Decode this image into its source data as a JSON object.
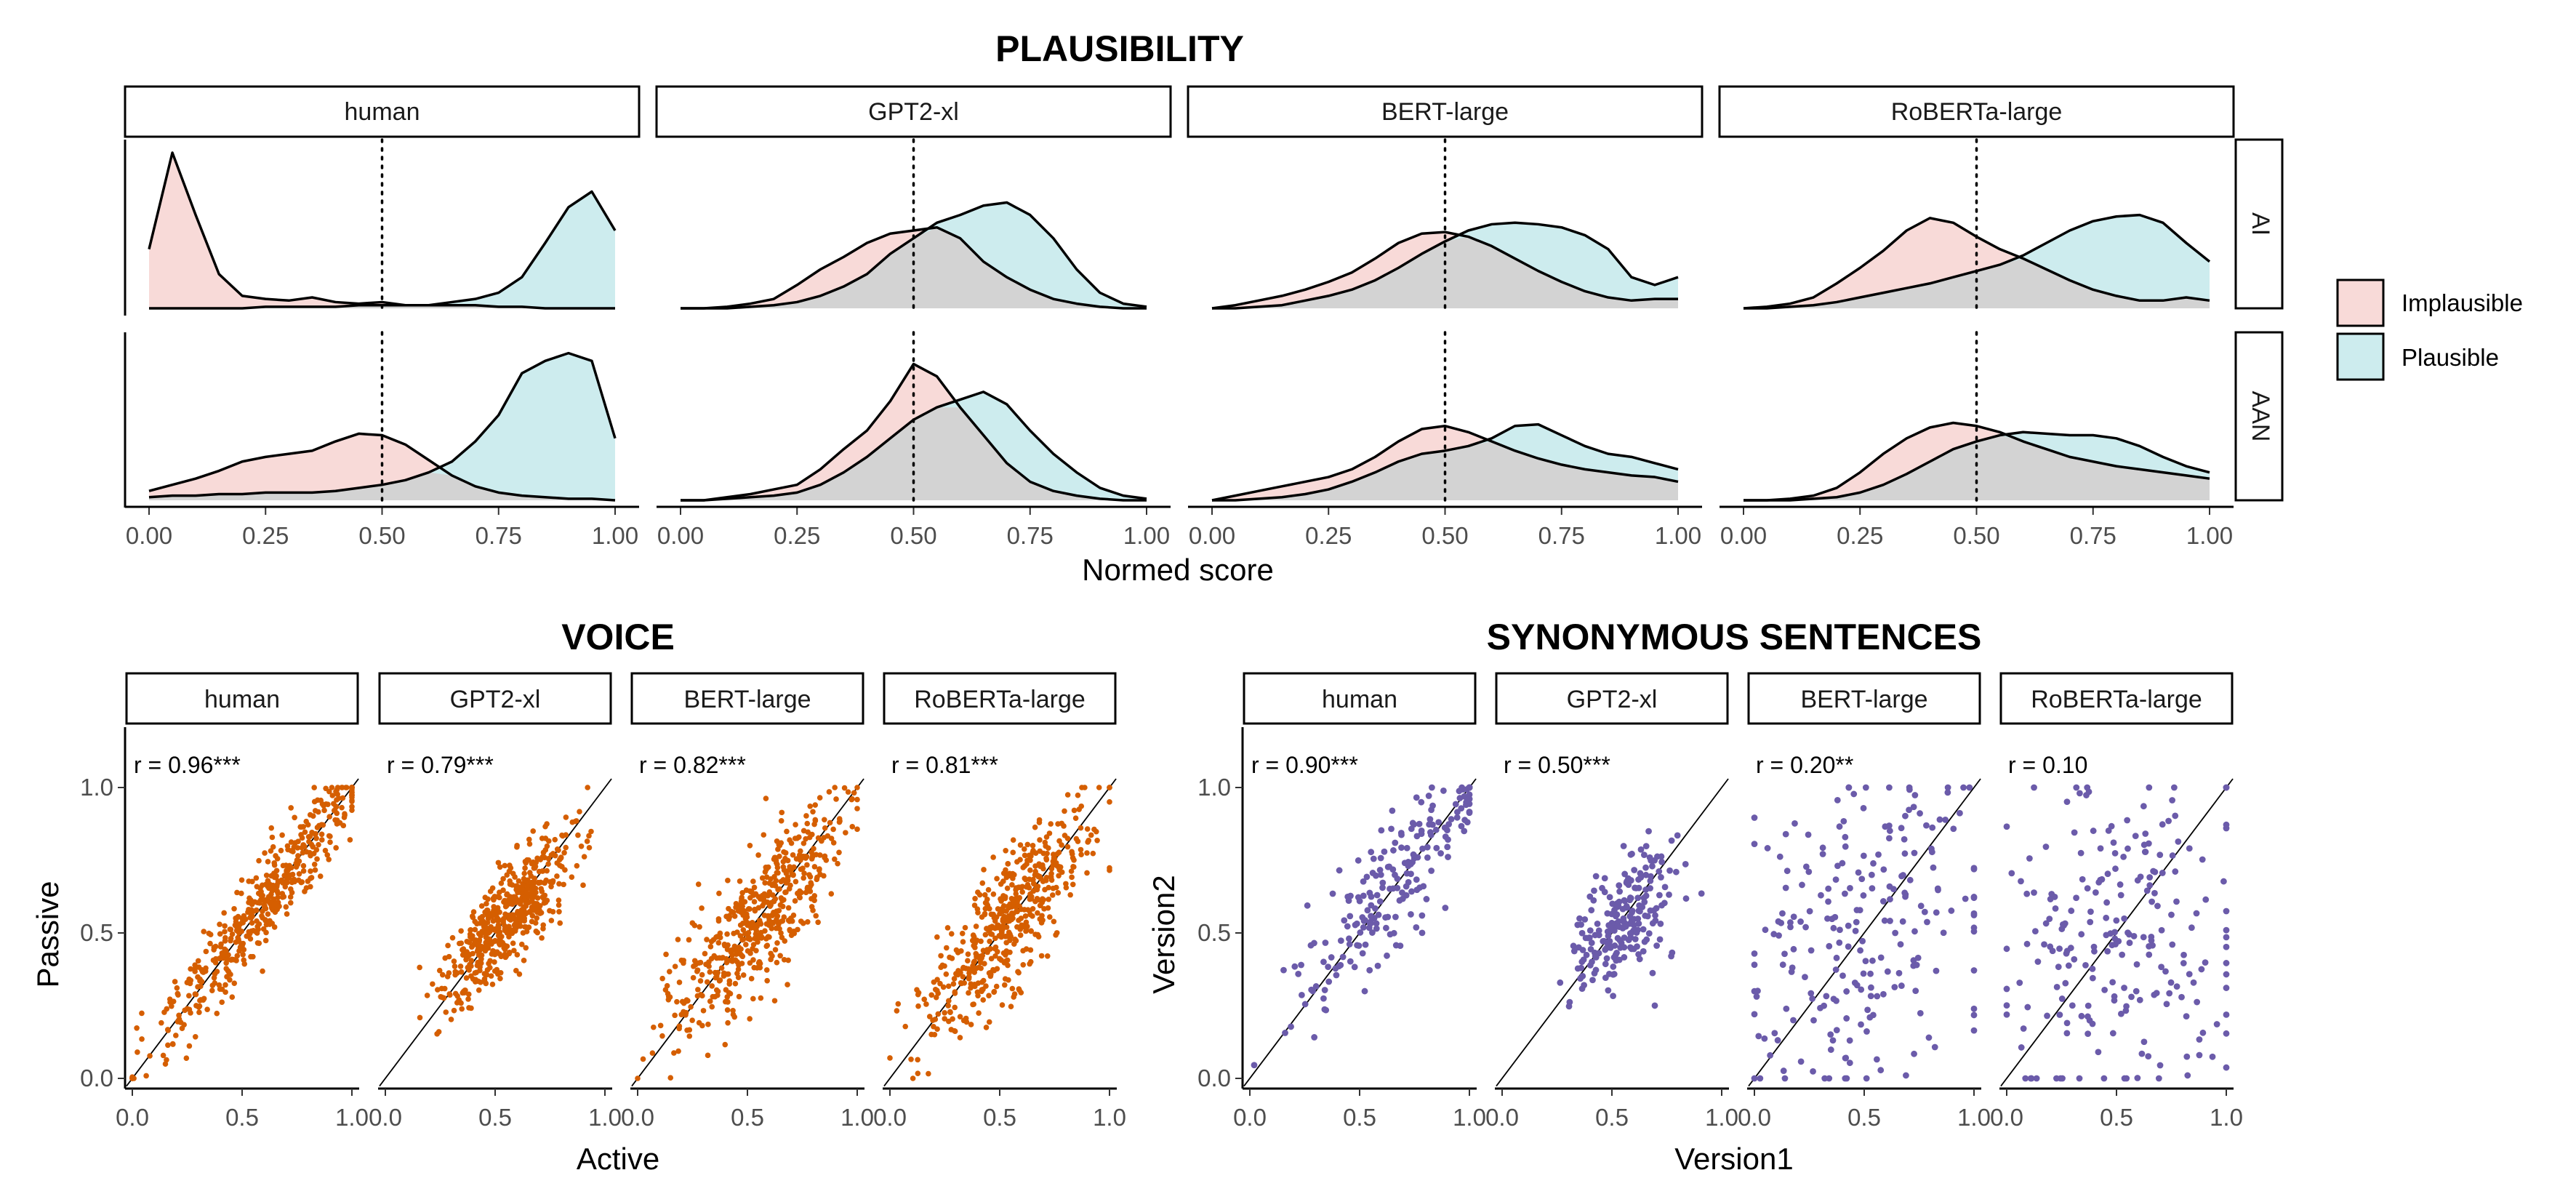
{
  "figure": {
    "legend": {
      "items": [
        {
          "label": "Implausible",
          "color": "#F8DAD8"
        },
        {
          "label": "Plausible",
          "color": "#CDECEE"
        }
      ]
    },
    "colors": {
      "voice_points": "#D55E00",
      "synonymous_points": "#6B5BAA",
      "overlap": "#D3D3D3"
    }
  },
  "chart_data": [
    {
      "type": "area",
      "title": "PLAUSIBILITY",
      "xlabel": "Normed score",
      "ylabel": "",
      "xlim": [
        0,
        1
      ],
      "xticks": [
        "0.00",
        "0.25",
        "0.50",
        "0.75",
        "1.00"
      ],
      "reference_line_x": 0.5,
      "facet_columns": [
        "human",
        "GPT2-xl",
        "BERT-large",
        "RoBERTa-large"
      ],
      "facet_rows": [
        "AI",
        "AAN"
      ],
      "x": [
        0,
        0.05,
        0.1,
        0.15,
        0.2,
        0.25,
        0.3,
        0.35,
        0.4,
        0.45,
        0.5,
        0.55,
        0.6,
        0.65,
        0.7,
        0.75,
        0.8,
        0.85,
        0.9,
        0.95,
        1.0
      ],
      "panels": [
        {
          "column": "human",
          "row": "AI",
          "series": [
            {
              "name": "Implausible",
              "values": [
                0.38,
                1.0,
                0.6,
                0.22,
                0.08,
                0.06,
                0.05,
                0.07,
                0.04,
                0.03,
                0.04,
                0.02,
                0.02,
                0.02,
                0.02,
                0.01,
                0.01,
                0.0,
                0.0,
                0.0,
                0.0
              ]
            },
            {
              "name": "Plausible",
              "values": [
                0.0,
                0.0,
                0.0,
                0.0,
                0.0,
                0.01,
                0.01,
                0.01,
                0.01,
                0.02,
                0.02,
                0.02,
                0.02,
                0.04,
                0.06,
                0.1,
                0.2,
                0.42,
                0.65,
                0.75,
                0.5
              ]
            }
          ]
        },
        {
          "column": "GPT2-xl",
          "row": "AI",
          "series": [
            {
              "name": "Implausible",
              "values": [
                0.0,
                0.0,
                0.01,
                0.03,
                0.06,
                0.15,
                0.25,
                0.33,
                0.42,
                0.48,
                0.5,
                0.52,
                0.45,
                0.3,
                0.2,
                0.12,
                0.06,
                0.03,
                0.01,
                0.0,
                0.0
              ]
            },
            {
              "name": "Plausible",
              "values": [
                0.0,
                0.0,
                0.0,
                0.01,
                0.02,
                0.04,
                0.08,
                0.14,
                0.22,
                0.35,
                0.45,
                0.55,
                0.6,
                0.66,
                0.68,
                0.6,
                0.45,
                0.25,
                0.1,
                0.03,
                0.01
              ]
            }
          ]
        },
        {
          "column": "BERT-large",
          "row": "AI",
          "series": [
            {
              "name": "Implausible",
              "values": [
                0.0,
                0.02,
                0.05,
                0.08,
                0.12,
                0.17,
                0.23,
                0.32,
                0.42,
                0.48,
                0.49,
                0.46,
                0.4,
                0.32,
                0.24,
                0.17,
                0.11,
                0.07,
                0.05,
                0.06,
                0.06
              ]
            },
            {
              "name": "Plausible",
              "values": [
                0.0,
                0.0,
                0.01,
                0.02,
                0.05,
                0.08,
                0.12,
                0.18,
                0.26,
                0.35,
                0.43,
                0.5,
                0.54,
                0.55,
                0.54,
                0.52,
                0.47,
                0.38,
                0.2,
                0.15,
                0.2
              ]
            }
          ]
        },
        {
          "column": "RoBERTa-large",
          "row": "AI",
          "series": [
            {
              "name": "Implausible",
              "values": [
                0.0,
                0.01,
                0.03,
                0.07,
                0.16,
                0.26,
                0.37,
                0.5,
                0.58,
                0.55,
                0.46,
                0.38,
                0.32,
                0.25,
                0.18,
                0.12,
                0.08,
                0.05,
                0.05,
                0.07,
                0.05
              ]
            },
            {
              "name": "Plausible",
              "values": [
                0.0,
                0.0,
                0.01,
                0.02,
                0.04,
                0.07,
                0.1,
                0.13,
                0.16,
                0.2,
                0.24,
                0.28,
                0.34,
                0.42,
                0.5,
                0.56,
                0.59,
                0.6,
                0.55,
                0.42,
                0.3
              ]
            }
          ]
        },
        {
          "column": "human",
          "row": "AAN",
          "series": [
            {
              "name": "Implausible",
              "values": [
                0.06,
                0.1,
                0.14,
                0.19,
                0.25,
                0.28,
                0.3,
                0.32,
                0.38,
                0.43,
                0.42,
                0.36,
                0.26,
                0.16,
                0.09,
                0.05,
                0.03,
                0.02,
                0.01,
                0.01,
                0.0
              ]
            },
            {
              "name": "Plausible",
              "values": [
                0.02,
                0.03,
                0.03,
                0.04,
                0.04,
                0.05,
                0.05,
                0.05,
                0.06,
                0.08,
                0.1,
                0.13,
                0.18,
                0.25,
                0.38,
                0.55,
                0.82,
                0.9,
                0.95,
                0.9,
                0.4
              ]
            }
          ]
        },
        {
          "column": "GPT2-xl",
          "row": "AAN",
          "series": [
            {
              "name": "Implausible",
              "values": [
                0.0,
                0.0,
                0.02,
                0.04,
                0.07,
                0.1,
                0.2,
                0.33,
                0.45,
                0.64,
                0.88,
                0.8,
                0.6,
                0.42,
                0.24,
                0.12,
                0.06,
                0.03,
                0.01,
                0.0,
                0.0
              ]
            },
            {
              "name": "Plausible",
              "values": [
                0.0,
                0.0,
                0.01,
                0.02,
                0.03,
                0.05,
                0.1,
                0.18,
                0.28,
                0.4,
                0.52,
                0.6,
                0.65,
                0.7,
                0.62,
                0.45,
                0.3,
                0.18,
                0.08,
                0.03,
                0.01
              ]
            }
          ]
        },
        {
          "column": "BERT-large",
          "row": "AAN",
          "series": [
            {
              "name": "Implausible",
              "values": [
                0.0,
                0.03,
                0.06,
                0.09,
                0.12,
                0.15,
                0.2,
                0.28,
                0.38,
                0.46,
                0.48,
                0.44,
                0.38,
                0.32,
                0.27,
                0.23,
                0.2,
                0.18,
                0.16,
                0.15,
                0.12
              ]
            },
            {
              "name": "Plausible",
              "values": [
                0.0,
                0.0,
                0.01,
                0.02,
                0.04,
                0.07,
                0.12,
                0.18,
                0.25,
                0.3,
                0.32,
                0.35,
                0.4,
                0.48,
                0.49,
                0.42,
                0.35,
                0.3,
                0.28,
                0.24,
                0.2
              ]
            }
          ]
        },
        {
          "column": "RoBERTa-large",
          "row": "AAN",
          "series": [
            {
              "name": "Implausible",
              "values": [
                0.0,
                0.0,
                0.01,
                0.03,
                0.08,
                0.18,
                0.3,
                0.4,
                0.47,
                0.5,
                0.48,
                0.44,
                0.38,
                0.33,
                0.28,
                0.25,
                0.22,
                0.2,
                0.18,
                0.16,
                0.14
              ]
            },
            {
              "name": "Plausible",
              "values": [
                0.0,
                0.0,
                0.0,
                0.01,
                0.02,
                0.05,
                0.1,
                0.17,
                0.25,
                0.33,
                0.38,
                0.42,
                0.44,
                0.43,
                0.42,
                0.42,
                0.4,
                0.35,
                0.28,
                0.22,
                0.18
              ]
            }
          ]
        }
      ]
    },
    {
      "type": "scatter",
      "title": "VOICE",
      "xlabel": "Active",
      "ylabel": "Passive",
      "xlim": [
        0,
        1
      ],
      "ylim": [
        0,
        1
      ],
      "xticks": [
        "0.0",
        "0.5",
        "1.0"
      ],
      "yticks": [
        "0.0",
        "0.5",
        "1.0"
      ],
      "facets": [
        {
          "name": "human",
          "r_label": "r = 0.96***",
          "corr": 0.96,
          "x_center": 0.62,
          "x_spread": 0.26,
          "n": 520
        },
        {
          "name": "GPT2-xl",
          "r_label": "r = 0.79***",
          "corr": 0.79,
          "x_center": 0.55,
          "x_spread": 0.14,
          "n": 520
        },
        {
          "name": "BERT-large",
          "r_label": "r = 0.82***",
          "corr": 0.82,
          "x_center": 0.55,
          "x_spread": 0.2,
          "n": 520
        },
        {
          "name": "RoBERTa-large",
          "r_label": "r = 0.81***",
          "corr": 0.81,
          "x_center": 0.55,
          "x_spread": 0.2,
          "n": 520
        }
      ]
    },
    {
      "type": "scatter",
      "title": "SYNONYMOUS SENTENCES",
      "xlabel": "Version1",
      "ylabel": "Version2",
      "xlim": [
        0,
        1
      ],
      "ylim": [
        0,
        1
      ],
      "xticks": [
        "0.0",
        "0.5",
        "1.0"
      ],
      "yticks": [
        "0.0",
        "0.5",
        "1.0"
      ],
      "facets": [
        {
          "name": "human",
          "r_label": "r = 0.90***",
          "corr": 0.9,
          "x_center": 0.68,
          "x_spread": 0.25,
          "n": 220
        },
        {
          "name": "GPT2-xl",
          "r_label": "r = 0.50***",
          "corr": 0.5,
          "x_center": 0.55,
          "x_spread": 0.12,
          "n": 220
        },
        {
          "name": "BERT-large",
          "r_label": "r = 0.20**",
          "corr": 0.2,
          "x_center": 0.5,
          "x_spread": 0.28,
          "n": 220
        },
        {
          "name": "RoBERTa-large",
          "r_label": "r = 0.10",
          "corr": 0.1,
          "x_center": 0.5,
          "x_spread": 0.28,
          "n": 220
        }
      ]
    }
  ]
}
